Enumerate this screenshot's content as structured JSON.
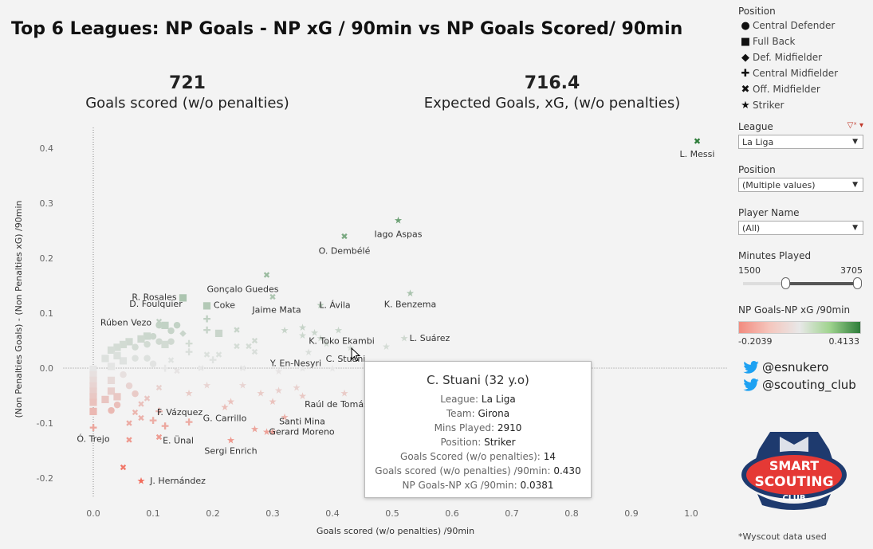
{
  "title": "Top 6 Leagues: NP Goals - NP xG / 90min vs NP Goals Scored/ 90min",
  "kpis": [
    {
      "value": "721",
      "label": "Goals scored (w/o penalties)"
    },
    {
      "value": "716.4",
      "label": "Expected Goals, xG, (w/o penalties)"
    }
  ],
  "sidebar": {
    "legend_title": "Position",
    "legend": [
      {
        "label": "Central Defender",
        "icon": "circle"
      },
      {
        "label": "Full Back",
        "icon": "square"
      },
      {
        "label": "Def. Midfielder",
        "icon": "diamond"
      },
      {
        "label": "Central Midfielder",
        "icon": "plus"
      },
      {
        "label": "Off. Midfielder",
        "icon": "cross"
      },
      {
        "label": "Striker",
        "icon": "star"
      }
    ],
    "filters": [
      {
        "label": "League",
        "value": "La Liga"
      },
      {
        "label": "Position",
        "value": "(Multiple values)"
      },
      {
        "label": "Player Name",
        "value": "(All)"
      }
    ],
    "minutes": {
      "label": "Minutes Played",
      "min": "1500",
      "max": "3705"
    },
    "color_legend": {
      "title": "NP Goals-NP xG /90min",
      "min": "-0.2039",
      "max": "0.4133"
    },
    "twitter": [
      "@esnukero",
      "@scouting_club"
    ],
    "logo_text": [
      "SMART",
      "SCOUTING",
      "CLUB"
    ],
    "footnote": "*Wyscout data used"
  },
  "tooltip": {
    "title": "C. Stuani (32 y.o)",
    "rows": [
      {
        "k": "League:",
        "v": "La Liga"
      },
      {
        "k": "Team:",
        "v": "Girona"
      },
      {
        "k": "Mins Played:",
        "v": "2910"
      },
      {
        "k": "Position:",
        "v": "Striker"
      },
      {
        "k": "Goals Scored (w/o penalties):",
        "v": "14"
      },
      {
        "k": "Goals scored (w/o penalties) /90min:",
        "v": "0.430"
      },
      {
        "k": "NP Goals-NP xG /90min:",
        "v": "0.0381"
      }
    ]
  },
  "chart_data": {
    "type": "scatter",
    "xlabel": "Goals scored (w/o penalties) /90min",
    "ylabel": "(Non Penalties Goals) - (Non Penalties xG) /90min",
    "xlim": [
      -0.05,
      1.05
    ],
    "ylim": [
      -0.22,
      0.43
    ],
    "xticks": [
      0.0,
      0.1,
      0.2,
      0.3,
      0.4,
      0.5,
      0.6,
      0.7,
      0.8,
      0.9,
      1.0
    ],
    "yticks": [
      -0.2,
      -0.1,
      0.0,
      0.1,
      0.2,
      0.3,
      0.4
    ],
    "xtick_labels": [
      "0.0",
      "0.1",
      "0.2",
      "0.3",
      "0.4",
      "0.5",
      "0.6",
      "0.7",
      "0.8",
      "0.9",
      "1.0"
    ],
    "ytick_labels": [
      "-0.2",
      "-0.1",
      "0.0",
      "0.1",
      "0.2",
      "0.3",
      "0.4"
    ],
    "color_scale": {
      "low": "#f26b5b",
      "mid": "#e6e6e6",
      "high": "#2e7d3a",
      "min": -0.2039,
      "max": 0.4133
    },
    "labeled_points": [
      {
        "name": "L. Messi",
        "x": 1.01,
        "y": 0.413,
        "shape": "cross"
      },
      {
        "name": "Iago Aspas",
        "x": 0.51,
        "y": 0.27,
        "shape": "star"
      },
      {
        "name": "O. Dembélé",
        "x": 0.42,
        "y": 0.24,
        "shape": "cross"
      },
      {
        "name": "Gonçalo Guedes",
        "x": 0.29,
        "y": 0.17,
        "shape": "cross"
      },
      {
        "name": "R. Rosales",
        "x": 0.15,
        "y": 0.13,
        "shape": "square"
      },
      {
        "name": "Coke",
        "x": 0.19,
        "y": 0.115,
        "shape": "square"
      },
      {
        "name": "Jaime Mata",
        "x": 0.3,
        "y": 0.13,
        "shape": "cross"
      },
      {
        "name": "L. Ávila",
        "x": 0.38,
        "y": 0.115,
        "shape": "star"
      },
      {
        "name": "K. Benzema",
        "x": 0.53,
        "y": 0.137,
        "shape": "star"
      },
      {
        "name": "D. Foulquier",
        "x": 0.11,
        "y": 0.08,
        "shape": "circle"
      },
      {
        "name": "K. Toko Ekambi",
        "x": 0.41,
        "y": 0.07,
        "shape": "star"
      },
      {
        "name": "Rúben Vezo",
        "x": 0.1,
        "y": 0.06,
        "shape": "circle"
      },
      {
        "name": "L. Suárez",
        "x": 0.52,
        "y": 0.055,
        "shape": "star"
      },
      {
        "name": "Y. En-Nesyri",
        "x": 0.36,
        "y": 0.03,
        "shape": "star"
      },
      {
        "name": "C. Stuani",
        "x": 0.43,
        "y": 0.038,
        "shape": "star"
      },
      {
        "name": "Raúl de Tomás",
        "x": 0.42,
        "y": -0.045,
        "shape": "star"
      },
      {
        "name": "F. Vázquez",
        "x": 0.11,
        "y": -0.078,
        "shape": "plus"
      },
      {
        "name": "G. Carrillo",
        "x": 0.22,
        "y": -0.07,
        "shape": "star"
      },
      {
        "name": "Santi Mina",
        "x": 0.32,
        "y": -0.088,
        "shape": "star"
      },
      {
        "name": "Gerard Moreno",
        "x": 0.29,
        "y": -0.115,
        "shape": "star"
      },
      {
        "name": "Ó. Trejo",
        "x": 0.0,
        "y": -0.108,
        "shape": "plus"
      },
      {
        "name": "E. Ünal",
        "x": 0.11,
        "y": -0.125,
        "shape": "cross"
      },
      {
        "name": "Sergi Enrich",
        "x": 0.23,
        "y": -0.13,
        "shape": "star"
      },
      {
        "name": "J. Hernández",
        "x": 0.08,
        "y": -0.204,
        "shape": "star"
      }
    ],
    "other_points": [
      {
        "x": 0.11,
        "y": 0.085,
        "shape": "cross"
      },
      {
        "x": 0.12,
        "y": 0.08,
        "shape": "square"
      },
      {
        "x": 0.14,
        "y": 0.08,
        "shape": "circle"
      },
      {
        "x": 0.13,
        "y": 0.07,
        "shape": "circle"
      },
      {
        "x": 0.09,
        "y": 0.06,
        "shape": "square"
      },
      {
        "x": 0.08,
        "y": 0.055,
        "shape": "square"
      },
      {
        "x": 0.06,
        "y": 0.05,
        "shape": "square"
      },
      {
        "x": 0.05,
        "y": 0.045,
        "shape": "square"
      },
      {
        "x": 0.04,
        "y": 0.04,
        "shape": "square"
      },
      {
        "x": 0.03,
        "y": 0.035,
        "shape": "square"
      },
      {
        "x": 0.07,
        "y": 0.04,
        "shape": "circle"
      },
      {
        "x": 0.09,
        "y": 0.045,
        "shape": "circle"
      },
      {
        "x": 0.11,
        "y": 0.05,
        "shape": "circle"
      },
      {
        "x": 0.12,
        "y": 0.045,
        "shape": "square"
      },
      {
        "x": 0.13,
        "y": 0.05,
        "shape": "circle"
      },
      {
        "x": 0.15,
        "y": 0.065,
        "shape": "diamond"
      },
      {
        "x": 0.16,
        "y": 0.045,
        "shape": "plus"
      },
      {
        "x": 0.16,
        "y": 0.03,
        "shape": "plus"
      },
      {
        "x": 0.19,
        "y": 0.09,
        "shape": "plus"
      },
      {
        "x": 0.19,
        "y": 0.07,
        "shape": "plus"
      },
      {
        "x": 0.21,
        "y": 0.065,
        "shape": "square"
      },
      {
        "x": 0.19,
        "y": 0.025,
        "shape": "cross"
      },
      {
        "x": 0.24,
        "y": 0.07,
        "shape": "cross"
      },
      {
        "x": 0.21,
        "y": 0.025,
        "shape": "cross"
      },
      {
        "x": 0.24,
        "y": 0.04,
        "shape": "cross"
      },
      {
        "x": 0.26,
        "y": 0.04,
        "shape": "cross"
      },
      {
        "x": 0.27,
        "y": 0.05,
        "shape": "cross"
      },
      {
        "x": 0.27,
        "y": 0.03,
        "shape": "cross"
      },
      {
        "x": 0.32,
        "y": 0.07,
        "shape": "star"
      },
      {
        "x": 0.35,
        "y": 0.075,
        "shape": "star"
      },
      {
        "x": 0.35,
        "y": 0.06,
        "shape": "star"
      },
      {
        "x": 0.37,
        "y": 0.065,
        "shape": "star"
      },
      {
        "x": 0.38,
        "y": 0.055,
        "shape": "star"
      },
      {
        "x": 0.39,
        "y": 0.045,
        "shape": "star"
      },
      {
        "x": 0.49,
        "y": 0.04,
        "shape": "star"
      },
      {
        "x": 0.4,
        "y": 0.0,
        "shape": "star"
      },
      {
        "x": 0.35,
        "y": 0.0,
        "shape": "star"
      },
      {
        "x": 0.07,
        "y": 0.02,
        "shape": "circle"
      },
      {
        "x": 0.09,
        "y": 0.02,
        "shape": "circle"
      },
      {
        "x": 0.1,
        "y": 0.01,
        "shape": "circle"
      },
      {
        "x": 0.13,
        "y": 0.015,
        "shape": "cross"
      },
      {
        "x": 0.12,
        "y": 0.0,
        "shape": "plus"
      },
      {
        "x": 0.14,
        "y": -0.005,
        "shape": "cross"
      },
      {
        "x": 0.25,
        "y": 0.0,
        "shape": "cross"
      },
      {
        "x": 0.2,
        "y": 0.015,
        "shape": "plus"
      },
      {
        "x": 0.18,
        "y": 0.0,
        "shape": "cross"
      },
      {
        "x": 0.31,
        "y": -0.005,
        "shape": "star"
      },
      {
        "x": 0.16,
        "y": -0.045,
        "shape": "star"
      },
      {
        "x": 0.19,
        "y": -0.03,
        "shape": "star"
      },
      {
        "x": 0.25,
        "y": -0.03,
        "shape": "star"
      },
      {
        "x": 0.28,
        "y": -0.045,
        "shape": "star"
      },
      {
        "x": 0.3,
        "y": -0.06,
        "shape": "star"
      },
      {
        "x": 0.31,
        "y": -0.04,
        "shape": "star"
      },
      {
        "x": 0.34,
        "y": -0.035,
        "shape": "star"
      },
      {
        "x": 0.35,
        "y": -0.05,
        "shape": "star"
      },
      {
        "x": 0.23,
        "y": -0.06,
        "shape": "star"
      },
      {
        "x": 0.27,
        "y": -0.11,
        "shape": "star"
      },
      {
        "x": 0.3,
        "y": -0.115,
        "shape": "star"
      },
      {
        "x": 0.11,
        "y": -0.035,
        "shape": "cross"
      },
      {
        "x": 0.09,
        "y": -0.055,
        "shape": "cross"
      },
      {
        "x": 0.08,
        "y": -0.065,
        "shape": "cross"
      },
      {
        "x": 0.07,
        "y": -0.08,
        "shape": "cross"
      },
      {
        "x": 0.08,
        "y": -0.09,
        "shape": "cross"
      },
      {
        "x": 0.06,
        "y": -0.1,
        "shape": "cross"
      },
      {
        "x": 0.06,
        "y": -0.13,
        "shape": "cross"
      },
      {
        "x": 0.05,
        "y": -0.18,
        "shape": "cross"
      },
      {
        "x": 0.1,
        "y": -0.095,
        "shape": "plus"
      },
      {
        "x": 0.12,
        "y": -0.105,
        "shape": "plus"
      },
      {
        "x": 0.16,
        "y": -0.098,
        "shape": "plus"
      },
      {
        "x": 0.0,
        "y": 0.0,
        "shape": "square"
      },
      {
        "x": 0.0,
        "y": -0.01,
        "shape": "square"
      },
      {
        "x": 0.0,
        "y": -0.02,
        "shape": "square"
      },
      {
        "x": 0.0,
        "y": -0.03,
        "shape": "square"
      },
      {
        "x": 0.0,
        "y": -0.04,
        "shape": "square"
      },
      {
        "x": 0.0,
        "y": -0.05,
        "shape": "square"
      },
      {
        "x": 0.0,
        "y": -0.06,
        "shape": "square"
      },
      {
        "x": 0.0,
        "y": -0.077,
        "shape": "square"
      },
      {
        "x": 0.03,
        "y": 0.005,
        "shape": "square"
      },
      {
        "x": 0.03,
        "y": -0.02,
        "shape": "square"
      },
      {
        "x": 0.03,
        "y": -0.04,
        "shape": "square"
      },
      {
        "x": 0.04,
        "y": -0.05,
        "shape": "square"
      },
      {
        "x": 0.04,
        "y": -0.065,
        "shape": "circle"
      },
      {
        "x": 0.03,
        "y": -0.075,
        "shape": "circle"
      },
      {
        "x": 0.05,
        "y": 0.015,
        "shape": "square"
      },
      {
        "x": 0.05,
        "y": -0.01,
        "shape": "circle"
      },
      {
        "x": 0.06,
        "y": -0.03,
        "shape": "circle"
      },
      {
        "x": 0.07,
        "y": -0.045,
        "shape": "circle"
      },
      {
        "x": 0.02,
        "y": -0.055,
        "shape": "square"
      },
      {
        "x": 0.04,
        "y": 0.025,
        "shape": "square"
      },
      {
        "x": 0.02,
        "y": 0.02,
        "shape": "square"
      }
    ]
  }
}
